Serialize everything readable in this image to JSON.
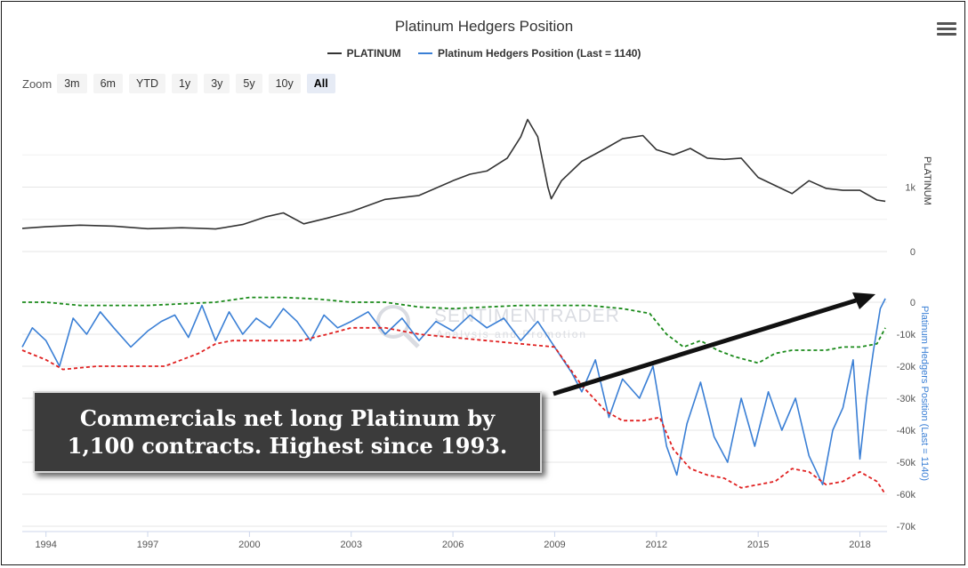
{
  "header": {
    "title": "Platinum Hedgers Position",
    "menu_icon": "hamburger-menu-icon"
  },
  "legend": [
    {
      "label": "PLATINUM",
      "color": "#333333"
    },
    {
      "label": "Platinum Hedgers Position (Last = 1140)",
      "color": "#3a7fd5"
    }
  ],
  "zoom": {
    "label": "Zoom",
    "buttons": [
      "3m",
      "6m",
      "YTD",
      "1y",
      "3y",
      "5y",
      "10y",
      "All"
    ],
    "active": "All"
  },
  "annotation": {
    "line1": "Commercials net long Platinum by",
    "line2": "1,100 contracts.  Highest since 1993."
  },
  "watermark": {
    "line1": "SENTIMENTRADER",
    "line2": "Analysis and Promotion"
  },
  "colors": {
    "price": "#333333",
    "hedgers": "#3a7fd5",
    "upper_band": "#1a8a1a",
    "lower_band": "#e02020",
    "grid": "#e6e6e6",
    "callout_bg": "#3b3b3b"
  },
  "chart_data": {
    "type": "line",
    "title": "Platinum Hedgers Position",
    "xlim": [
      1993.3,
      2018.8
    ],
    "x_ticks": [
      1994,
      1997,
      2000,
      2003,
      2006,
      2009,
      2012,
      2015,
      2018
    ],
    "grid": true,
    "legend_placement": "top-center",
    "panels": [
      {
        "name": "PLATINUM",
        "axis_label": "PLATINUM",
        "axis_side": "right",
        "ylim": [
          0,
          2000
        ],
        "y_ticks": [
          {
            "value": 0,
            "label": "0"
          },
          {
            "value": 1000,
            "label": "1k"
          }
        ],
        "series": [
          {
            "name": "PLATINUM",
            "color": "#333333",
            "dash": "solid",
            "points": [
              [
                1993.3,
                360
              ],
              [
                1994.0,
                385
              ],
              [
                1995.0,
                410
              ],
              [
                1996.0,
                395
              ],
              [
                1997.0,
                355
              ],
              [
                1998.0,
                370
              ],
              [
                1998.6,
                360
              ],
              [
                1999.0,
                350
              ],
              [
                1999.8,
                420
              ],
              [
                2000.5,
                540
              ],
              [
                2001.0,
                600
              ],
              [
                2001.6,
                430
              ],
              [
                2002.3,
                520
              ],
              [
                2003.0,
                620
              ],
              [
                2004.0,
                810
              ],
              [
                2005.0,
                870
              ],
              [
                2006.0,
                1100
              ],
              [
                2006.5,
                1200
              ],
              [
                2007.0,
                1250
              ],
              [
                2007.6,
                1450
              ],
              [
                2008.0,
                1780
              ],
              [
                2008.2,
                2050
              ],
              [
                2008.5,
                1780
              ],
              [
                2008.8,
                1000
              ],
              [
                2008.9,
                820
              ],
              [
                2009.2,
                1100
              ],
              [
                2009.8,
                1400
              ],
              [
                2010.5,
                1600
              ],
              [
                2011.0,
                1750
              ],
              [
                2011.6,
                1800
              ],
              [
                2012.0,
                1580
              ],
              [
                2012.5,
                1500
              ],
              [
                2013.0,
                1600
              ],
              [
                2013.5,
                1450
              ],
              [
                2014.0,
                1430
              ],
              [
                2014.5,
                1450
              ],
              [
                2015.0,
                1150
              ],
              [
                2015.6,
                1000
              ],
              [
                2016.0,
                900
              ],
              [
                2016.5,
                1100
              ],
              [
                2017.0,
                980
              ],
              [
                2017.5,
                950
              ],
              [
                2018.0,
                950
              ],
              [
                2018.5,
                800
              ],
              [
                2018.75,
                780
              ]
            ]
          }
        ]
      },
      {
        "name": "Platinum Hedgers Position (Last = 1140)",
        "axis_label": "Platinum Hedgers Position (Last = 1140)",
        "axis_side": "right",
        "ylim": [
          -70000,
          5000
        ],
        "y_ticks": [
          {
            "value": 0,
            "label": "0"
          },
          {
            "value": -10000,
            "label": "-10k"
          },
          {
            "value": -20000,
            "label": "-20k"
          },
          {
            "value": -30000,
            "label": "-30k"
          },
          {
            "value": -40000,
            "label": "-40k"
          },
          {
            "value": -50000,
            "label": "-50k"
          },
          {
            "value": -60000,
            "label": "-60k"
          },
          {
            "value": -70000,
            "label": "-70k"
          }
        ],
        "series": [
          {
            "name": "Platinum Hedgers Position (Last = 1140)",
            "color": "#3a7fd5",
            "dash": "solid",
            "points": [
              [
                1993.3,
                -14000
              ],
              [
                1993.6,
                -8000
              ],
              [
                1994.0,
                -12000
              ],
              [
                1994.4,
                -20000
              ],
              [
                1994.8,
                -5000
              ],
              [
                1995.2,
                -10000
              ],
              [
                1995.6,
                -3000
              ],
              [
                1996.0,
                -8000
              ],
              [
                1996.5,
                -14000
              ],
              [
                1997.0,
                -9000
              ],
              [
                1997.4,
                -6000
              ],
              [
                1997.8,
                -4000
              ],
              [
                1998.2,
                -11000
              ],
              [
                1998.6,
                -1000
              ],
              [
                1999.0,
                -12000
              ],
              [
                1999.4,
                -3000
              ],
              [
                1999.8,
                -10000
              ],
              [
                2000.2,
                -5000
              ],
              [
                2000.6,
                -8000
              ],
              [
                2001.0,
                -2000
              ],
              [
                2001.4,
                -6000
              ],
              [
                2001.8,
                -12000
              ],
              [
                2002.2,
                -4000
              ],
              [
                2002.6,
                -8000
              ],
              [
                2003.0,
                -6000
              ],
              [
                2003.5,
                -3000
              ],
              [
                2004.0,
                -10000
              ],
              [
                2004.5,
                -5000
              ],
              [
                2005.0,
                -12000
              ],
              [
                2005.5,
                -6000
              ],
              [
                2006.0,
                -9000
              ],
              [
                2006.5,
                -4000
              ],
              [
                2007.0,
                -8000
              ],
              [
                2007.5,
                -5000
              ],
              [
                2008.0,
                -12000
              ],
              [
                2008.5,
                -6000
              ],
              [
                2009.0,
                -14000
              ],
              [
                2009.5,
                -22000
              ],
              [
                2009.8,
                -28000
              ],
              [
                2010.2,
                -18000
              ],
              [
                2010.6,
                -36000
              ],
              [
                2011.0,
                -24000
              ],
              [
                2011.5,
                -30000
              ],
              [
                2011.9,
                -20000
              ],
              [
                2012.3,
                -45000
              ],
              [
                2012.6,
                -54000
              ],
              [
                2012.9,
                -38000
              ],
              [
                2013.3,
                -25000
              ],
              [
                2013.7,
                -42000
              ],
              [
                2014.1,
                -50000
              ],
              [
                2014.5,
                -30000
              ],
              [
                2014.9,
                -45000
              ],
              [
                2015.3,
                -28000
              ],
              [
                2015.7,
                -40000
              ],
              [
                2016.1,
                -30000
              ],
              [
                2016.5,
                -48000
              ],
              [
                2016.9,
                -57000
              ],
              [
                2017.2,
                -40000
              ],
              [
                2017.5,
                -33000
              ],
              [
                2017.8,
                -18000
              ],
              [
                2018.0,
                -49000
              ],
              [
                2018.2,
                -30000
              ],
              [
                2018.4,
                -15000
              ],
              [
                2018.6,
                -2000
              ],
              [
                2018.75,
                1140
              ]
            ]
          },
          {
            "name": "upper band",
            "color": "#1a8a1a",
            "dash": "dashed",
            "points": [
              [
                1993.3,
                0
              ],
              [
                1994.0,
                0
              ],
              [
                1995.0,
                -1000
              ],
              [
                1996.0,
                -1000
              ],
              [
                1997.0,
                -1000
              ],
              [
                1998.0,
                -500
              ],
              [
                1999.0,
                0
              ],
              [
                2000.0,
                1500
              ],
              [
                2001.0,
                1500
              ],
              [
                2002.0,
                1000
              ],
              [
                2003.0,
                0
              ],
              [
                2004.0,
                0
              ],
              [
                2005.0,
                -1500
              ],
              [
                2006.0,
                -2000
              ],
              [
                2007.0,
                -1500
              ],
              [
                2008.0,
                -1000
              ],
              [
                2009.0,
                -1000
              ],
              [
                2010.0,
                -1000
              ],
              [
                2011.0,
                -2000
              ],
              [
                2011.8,
                -3500
              ],
              [
                2012.3,
                -10000
              ],
              [
                2012.8,
                -14000
              ],
              [
                2013.3,
                -12000
              ],
              [
                2013.8,
                -15000
              ],
              [
                2014.3,
                -17000
              ],
              [
                2015.0,
                -19000
              ],
              [
                2015.5,
                -16000
              ],
              [
                2016.0,
                -15000
              ],
              [
                2016.5,
                -15000
              ],
              [
                2017.0,
                -15000
              ],
              [
                2017.5,
                -14000
              ],
              [
                2018.0,
                -14000
              ],
              [
                2018.5,
                -13000
              ],
              [
                2018.75,
                -8000
              ]
            ]
          },
          {
            "name": "lower band",
            "color": "#e02020",
            "dash": "dashed",
            "points": [
              [
                1993.3,
                -15000
              ],
              [
                1994.0,
                -18000
              ],
              [
                1994.5,
                -21000
              ],
              [
                1995.5,
                -20000
              ],
              [
                1996.5,
                -20000
              ],
              [
                1997.5,
                -20000
              ],
              [
                1998.5,
                -16000
              ],
              [
                1999.0,
                -13000
              ],
              [
                1999.5,
                -12000
              ],
              [
                2000.5,
                -12000
              ],
              [
                2001.5,
                -12000
              ],
              [
                2002.3,
                -10000
              ],
              [
                2003.0,
                -8000
              ],
              [
                2004.0,
                -8000
              ],
              [
                2005.0,
                -10000
              ],
              [
                2006.0,
                -11000
              ],
              [
                2007.0,
                -12000
              ],
              [
                2008.0,
                -13000
              ],
              [
                2009.0,
                -14000
              ],
              [
                2009.8,
                -26000
              ],
              [
                2010.5,
                -34000
              ],
              [
                2011.0,
                -37000
              ],
              [
                2011.6,
                -37000
              ],
              [
                2012.1,
                -36000
              ],
              [
                2012.5,
                -46000
              ],
              [
                2013.0,
                -52000
              ],
              [
                2013.5,
                -54000
              ],
              [
                2014.0,
                -55000
              ],
              [
                2014.5,
                -58000
              ],
              [
                2015.0,
                -57000
              ],
              [
                2015.5,
                -56000
              ],
              [
                2016.0,
                -52000
              ],
              [
                2016.5,
                -53000
              ],
              [
                2017.0,
                -57000
              ],
              [
                2017.5,
                -56000
              ],
              [
                2018.0,
                -53000
              ],
              [
                2018.5,
                -56000
              ],
              [
                2018.75,
                -60000
              ]
            ]
          }
        ]
      }
    ]
  }
}
